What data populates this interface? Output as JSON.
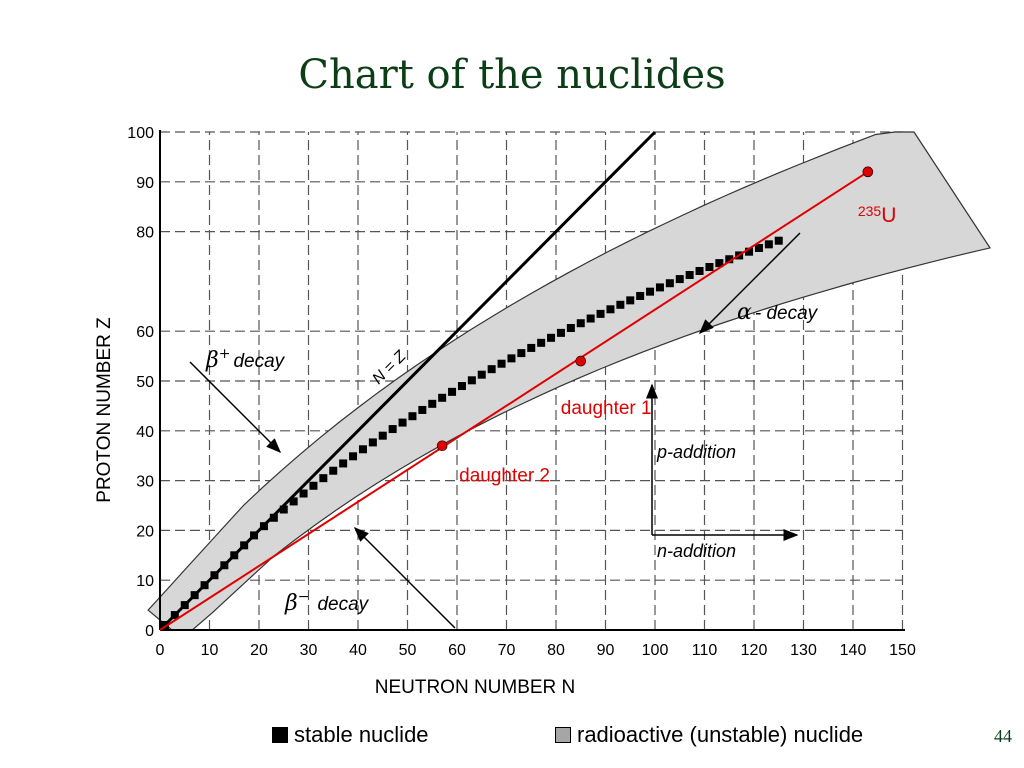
{
  "slide": {
    "title": "Chart of the nuclides",
    "page_number": "44"
  },
  "legend": {
    "stable_label": "stable nuclide",
    "radioactive_label": "radioactive (unstable) nuclide"
  },
  "chart_data": {
    "type": "scatter",
    "xlabel": "NEUTRON NUMBER N",
    "ylabel": "PROTON NUMBER Z",
    "xlim": [
      0,
      150
    ],
    "ylim": [
      0,
      100
    ],
    "x_ticks": [
      0,
      10,
      20,
      30,
      40,
      50,
      60,
      70,
      80,
      90,
      100,
      110,
      120,
      130,
      140,
      150
    ],
    "y_ticks": [
      0,
      10,
      20,
      30,
      40,
      50,
      60,
      80,
      90,
      100
    ],
    "grid": true,
    "nz_line": {
      "label": "N = Z",
      "points": [
        [
          0,
          0
        ],
        [
          100,
          100
        ]
      ]
    },
    "decay_chain": {
      "points": [
        {
          "label_sup": "235",
          "label_main": "U",
          "N": 143,
          "Z": 92
        },
        {
          "label": "daughter 1",
          "N": 85,
          "Z": 54
        },
        {
          "label": "daughter 2",
          "N": 57,
          "Z": 37
        }
      ],
      "line": [
        [
          0,
          0
        ],
        [
          143,
          92
        ]
      ],
      "color": "#e00000"
    },
    "annotations": {
      "beta_plus_symbol": "β",
      "beta_plus_sup": "+",
      "beta_plus_text": "decay",
      "beta_minus_symbol": "β",
      "beta_minus_sup": "−",
      "beta_minus_text": "decay",
      "alpha_symbol": "α",
      "alpha_text": "- decay",
      "p_addition": "p-addition",
      "n_addition": "n-addition"
    }
  }
}
